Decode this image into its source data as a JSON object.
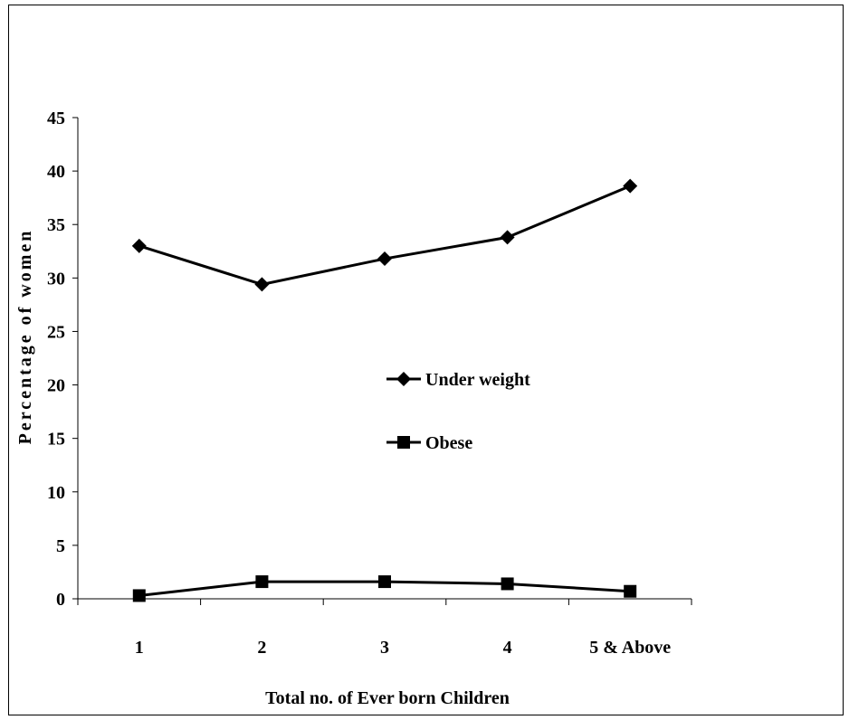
{
  "chart_data": {
    "type": "line",
    "categories": [
      "1",
      "2",
      "3",
      "4",
      "5 & Above"
    ],
    "series": [
      {
        "name": "Under weight",
        "marker": "diamond",
        "values": [
          33.0,
          29.4,
          31.8,
          33.8,
          38.6
        ]
      },
      {
        "name": "Obese",
        "marker": "square",
        "values": [
          0.3,
          1.6,
          1.6,
          1.4,
          0.7
        ]
      }
    ],
    "ylim": [
      0,
      45
    ],
    "yticks": [
      0,
      5,
      10,
      15,
      20,
      25,
      30,
      35,
      40,
      45
    ],
    "xlabel": "Total no. of Ever born Children",
    "ylabel": "Percentage of women",
    "grid": false,
    "legend_position": "center",
    "colors": {
      "line": "#000000",
      "background": "#ffffff"
    }
  }
}
